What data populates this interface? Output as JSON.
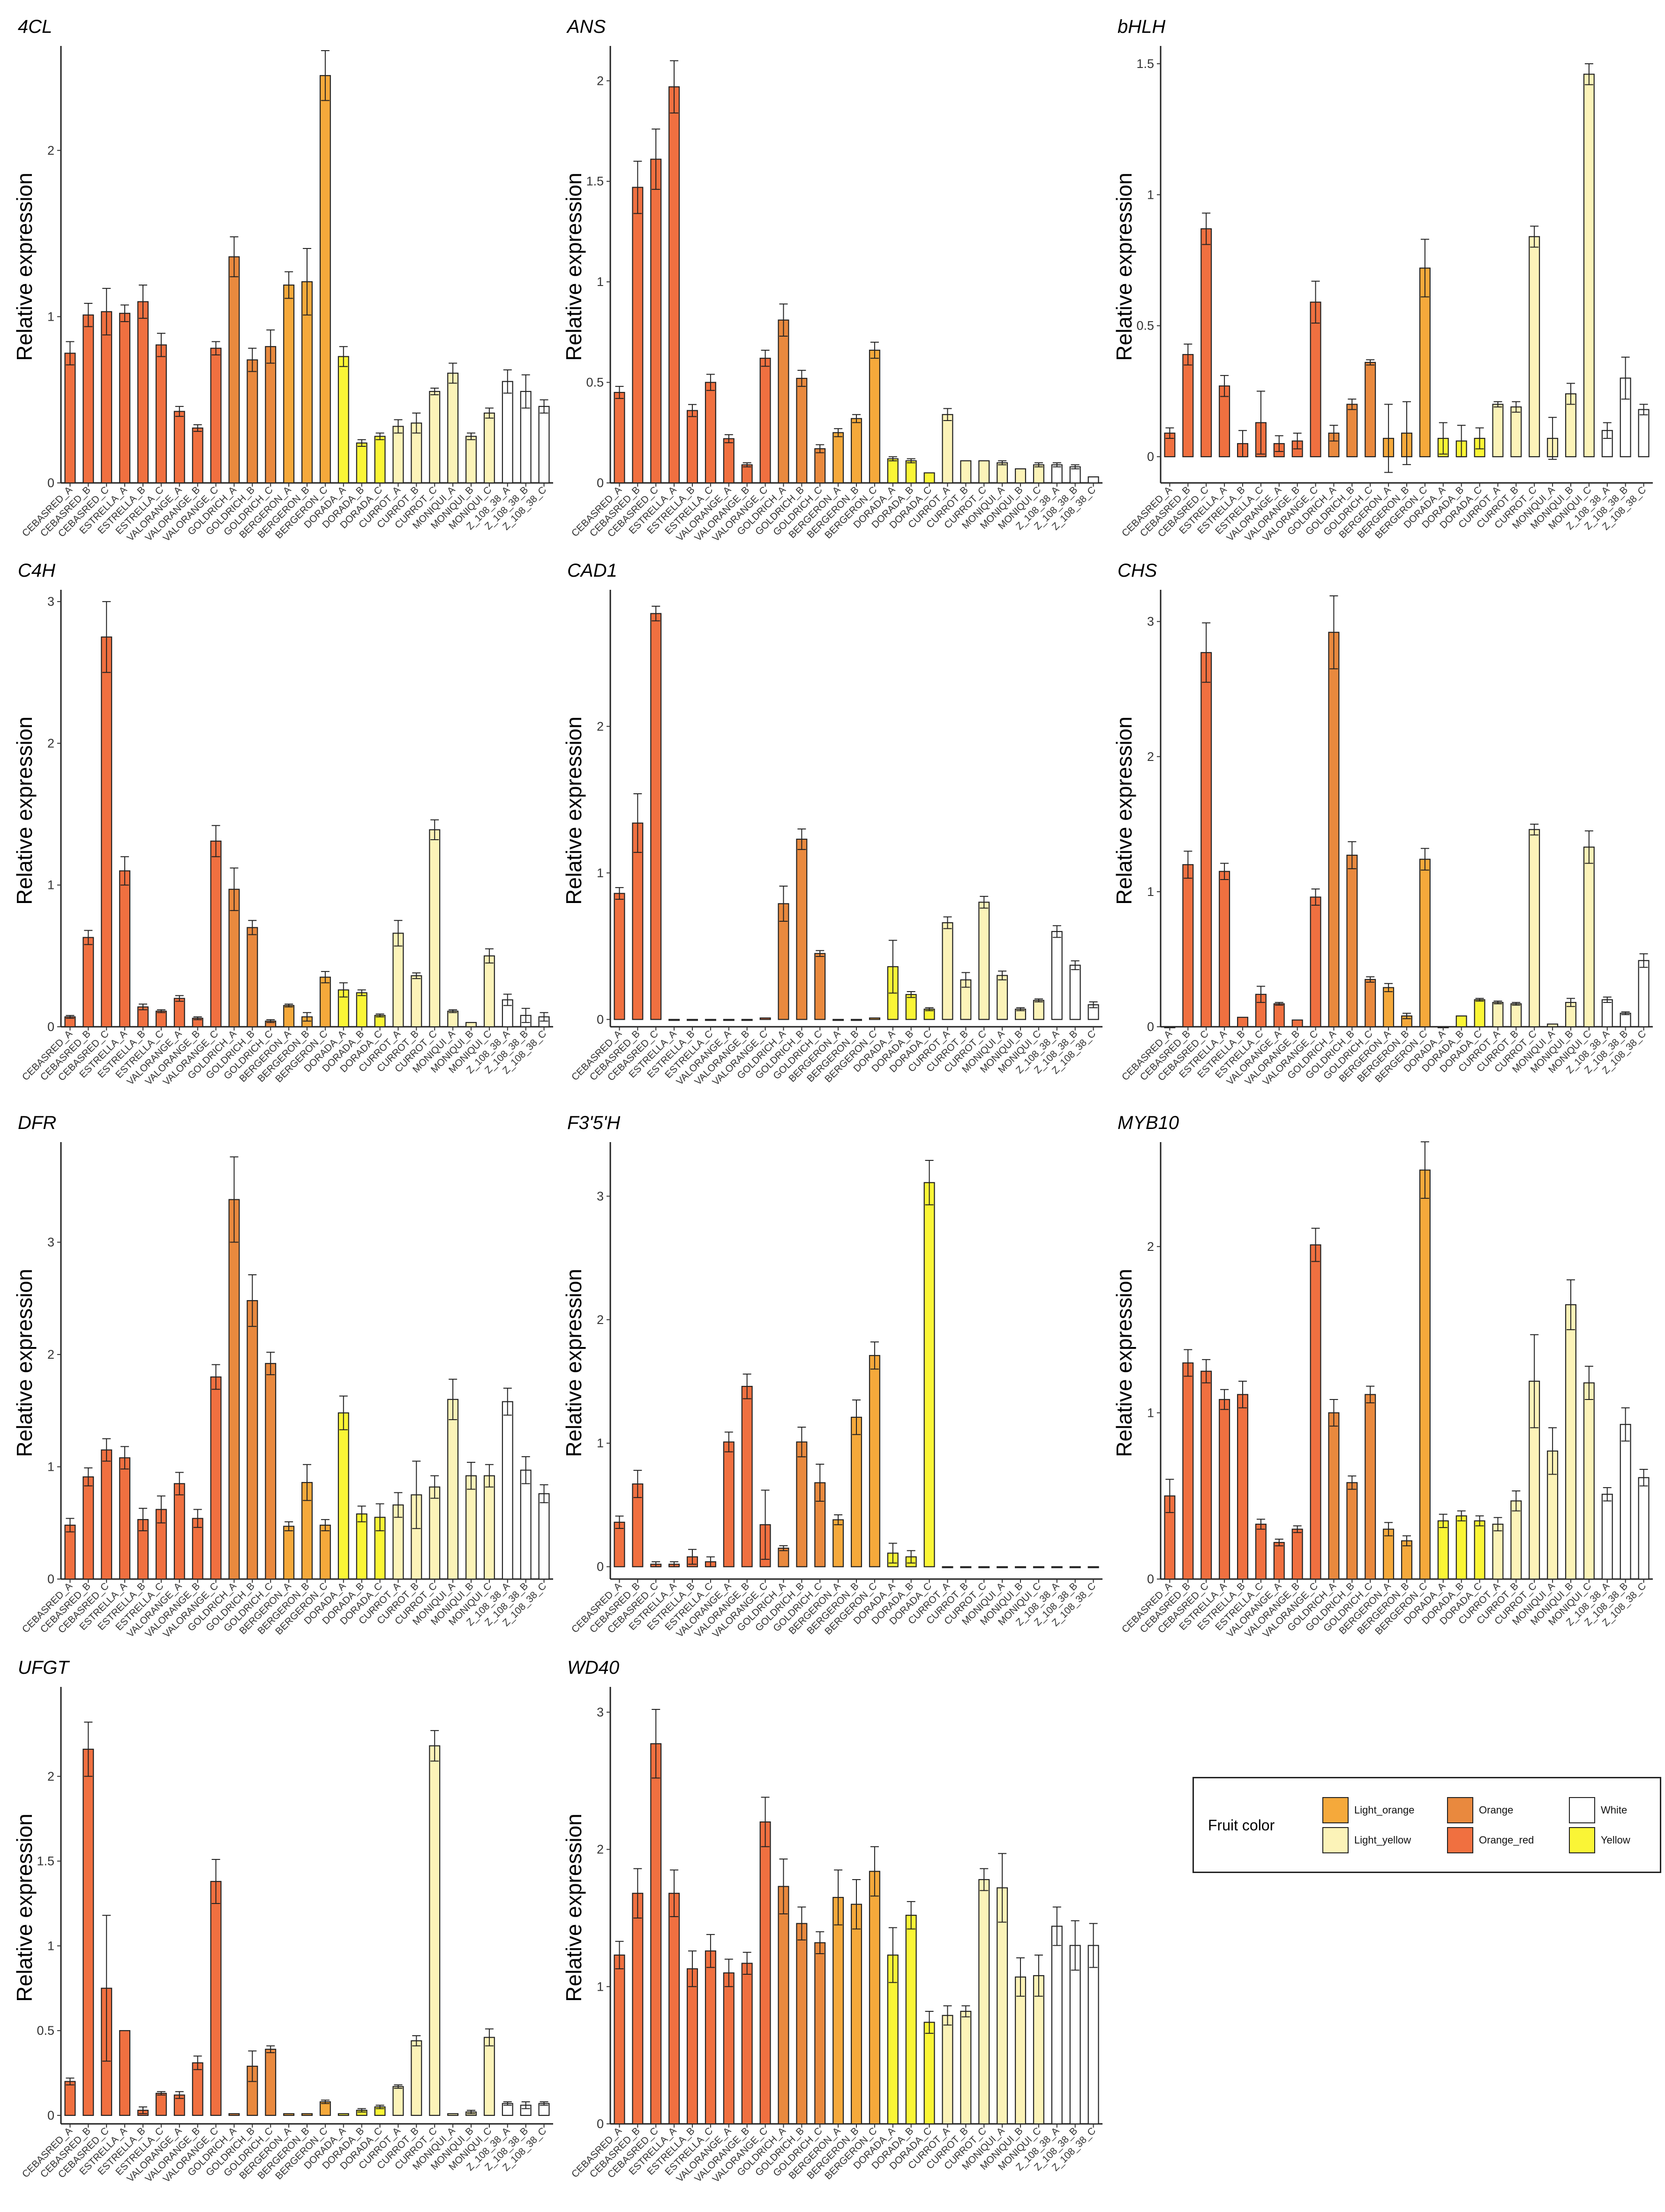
{
  "legend": {
    "title": "Fruit color",
    "entries": [
      {
        "name": "Light_orange",
        "color": "#F5A93B"
      },
      {
        "name": "Light_yellow",
        "color": "#FCF3B8"
      },
      {
        "name": "Orange",
        "color": "#E9893E"
      },
      {
        "name": "Orange_red",
        "color": "#F07040"
      },
      {
        "name": "White",
        "color": "#FFFFFF"
      },
      {
        "name": "Yellow",
        "color": "#FAF536"
      }
    ]
  },
  "chart_data": [
    {
      "type": "bar",
      "title": "4CL",
      "ylabel": "Relative expression",
      "ylim": [
        0,
        2.6
      ],
      "yticks": [
        0,
        1,
        2
      ],
      "categories": [
        "CEBASRED_A",
        "CEBASRED_B",
        "CEBASRED_C",
        "ESTRELLA_A",
        "ESTRELLA_B",
        "ESTRELLA_C",
        "VALORANGE_A",
        "VALORANGE_B",
        "VALORANGE_C",
        "GOLDRICH_A",
        "GOLDRICH_B",
        "GOLDRICH_C",
        "BERGERON_A",
        "BERGERON_B",
        "BERGERON_C",
        "DORADA_A",
        "DORADA_B",
        "DORADA_C",
        "CURROT_A",
        "CURROT_B",
        "CURROT_C",
        "MONIQUI_A",
        "MONIQUI_B",
        "MONIQUI_C",
        "Z_108_38_A",
        "Z_108_38_B",
        "Z_108_38_C"
      ],
      "values": [
        0.78,
        1.01,
        1.03,
        1.02,
        1.09,
        0.83,
        0.43,
        0.33,
        0.81,
        1.36,
        0.74,
        0.82,
        1.19,
        1.21,
        2.45,
        0.76,
        0.24,
        0.28,
        0.34,
        0.36,
        0.55,
        0.66,
        0.28,
        0.42,
        0.61,
        0.55,
        0.46
      ],
      "errors": [
        0.07,
        0.07,
        0.14,
        0.05,
        0.1,
        0.07,
        0.03,
        0.02,
        0.04,
        0.12,
        0.07,
        0.1,
        0.08,
        0.2,
        0.15,
        0.06,
        0.02,
        0.02,
        0.04,
        0.06,
        0.02,
        0.06,
        0.02,
        0.03,
        0.07,
        0.1,
        0.04
      ]
    },
    {
      "type": "bar",
      "title": "ANS",
      "ylabel": "Relative expression",
      "ylim": [
        0,
        2.15
      ],
      "yticks": [
        0,
        0.5,
        1,
        1.5,
        2
      ],
      "categories": [
        "CEBASRED_A",
        "CEBASRED_B",
        "CEBASRED_C",
        "ESTRELLA_A",
        "ESTRELLA_B",
        "ESTRELLA_C",
        "VALORANGE_A",
        "VALORANGE_B",
        "VALORANGE_C",
        "GOLDRICH_A",
        "GOLDRICH_B",
        "GOLDRICH_C",
        "BERGERON_A",
        "BERGERON_B",
        "BERGERON_C",
        "DORADA_A",
        "DORADA_B",
        "DORADA_C",
        "CURROT_A",
        "CURROT_B",
        "CURROT_C",
        "MONIQUI_A",
        "MONIQUI_B",
        "MONIQUI_C",
        "Z_108_38_A",
        "Z_108_38_B",
        "Z_108_38_C"
      ],
      "values": [
        0.45,
        1.47,
        1.61,
        1.97,
        0.36,
        0.5,
        0.22,
        0.09,
        0.62,
        0.81,
        0.52,
        0.17,
        0.25,
        0.32,
        0.66,
        0.12,
        0.11,
        0.05,
        0.34,
        0.11,
        0.11,
        0.1,
        0.07,
        0.09,
        0.09,
        0.08,
        0.03
      ],
      "errors": [
        0.03,
        0.13,
        0.15,
        0.13,
        0.03,
        0.04,
        0.02,
        0.01,
        0.04,
        0.08,
        0.04,
        0.02,
        0.02,
        0.02,
        0.04,
        0.01,
        0.01,
        0.0,
        0.03,
        0.0,
        0.0,
        0.01,
        0.0,
        0.01,
        0.01,
        0.01,
        0.0
      ]
    },
    {
      "type": "bar",
      "title": "bHLH",
      "ylabel": "Relative expression",
      "ylim": [
        -0.1,
        1.55
      ],
      "yticks": [
        0,
        0.5,
        1,
        1.5
      ],
      "categories": [
        "CEBASRED_A",
        "CEBASRED_B",
        "CEBASRED_C",
        "ESTRELLA_A",
        "ESTRELLA_B",
        "ESTRELLA_C",
        "VALORANGE_A",
        "VALORANGE_B",
        "VALORANGE_C",
        "GOLDRICH_A",
        "GOLDRICH_B",
        "GOLDRICH_C",
        "BERGERON_A",
        "BERGERON_B",
        "BERGERON_C",
        "DORADA_A",
        "DORADA_B",
        "DORADA_C",
        "CURROT_A",
        "CURROT_B",
        "CURROT_C",
        "MONIQUI_A",
        "MONIQUI_B",
        "MONIQUI_C",
        "Z_108_38_A",
        "Z_108_38_B",
        "Z_108_38_C"
      ],
      "values": [
        0.09,
        0.39,
        0.87,
        0.27,
        0.05,
        0.13,
        0.05,
        0.06,
        0.59,
        0.09,
        0.2,
        0.36,
        0.07,
        0.09,
        0.72,
        0.07,
        0.06,
        0.07,
        0.2,
        0.19,
        0.84,
        0.07,
        0.24,
        1.46,
        0.1,
        0.3,
        0.18
      ],
      "errors": [
        0.02,
        0.04,
        0.06,
        0.04,
        0.05,
        0.12,
        0.03,
        0.03,
        0.08,
        0.03,
        0.02,
        0.01,
        0.13,
        0.12,
        0.11,
        0.06,
        0.06,
        0.04,
        0.01,
        0.02,
        0.04,
        0.08,
        0.04,
        0.04,
        0.03,
        0.08,
        0.02
      ]
    },
    {
      "type": "bar",
      "title": "C4H",
      "ylabel": "Relative expression",
      "ylim": [
        0,
        3.05
      ],
      "yticks": [
        0,
        1,
        2,
        3
      ],
      "categories": [
        "CEBASRED_A",
        "CEBASRED_B",
        "CEBASRED_C",
        "ESTRELLA_A",
        "ESTRELLA_B",
        "ESTRELLA_C",
        "VALORANGE_A",
        "VALORANGE_B",
        "VALORANGE_C",
        "GOLDRICH_A",
        "GOLDRICH_B",
        "GOLDRICH_C",
        "BERGERON_A",
        "BERGERON_B",
        "BERGERON_C",
        "DORADA_A",
        "DORADA_B",
        "DORADA_C",
        "CURROT_A",
        "CURROT_B",
        "CURROT_C",
        "MONIQUI_A",
        "MONIQUI_B",
        "MONIQUI_C",
        "Z_108_38_A",
        "Z_108_38_B",
        "Z_108_38_C"
      ],
      "values": [
        0.07,
        0.63,
        2.75,
        1.1,
        0.14,
        0.11,
        0.2,
        0.06,
        1.31,
        0.97,
        0.7,
        0.04,
        0.15,
        0.07,
        0.35,
        0.26,
        0.24,
        0.08,
        0.66,
        0.36,
        1.39,
        0.11,
        0.03,
        0.5,
        0.19,
        0.08,
        0.07
      ],
      "errors": [
        0.01,
        0.05,
        0.25,
        0.1,
        0.02,
        0.01,
        0.02,
        0.01,
        0.11,
        0.15,
        0.05,
        0.01,
        0.01,
        0.03,
        0.04,
        0.05,
        0.02,
        0.01,
        0.09,
        0.02,
        0.07,
        0.01,
        0.0,
        0.05,
        0.04,
        0.05,
        0.03
      ]
    },
    {
      "type": "bar",
      "title": "CAD1",
      "ylabel": "Relative expression",
      "ylim": [
        -0.05,
        2.9
      ],
      "yticks": [
        0,
        1,
        2
      ],
      "categories": [
        "CEBASRED_A",
        "CEBASRED_B",
        "CEBASRED_C",
        "ESTRELLA_A",
        "ESTRELLA_B",
        "ESTRELLA_C",
        "VALORANGE_A",
        "VALORANGE_B",
        "VALORANGE_C",
        "GOLDRICH_A",
        "GOLDRICH_B",
        "GOLDRICH_C",
        "BERGERON_A",
        "BERGERON_B",
        "BERGERON_C",
        "DORADA_A",
        "DORADA_B",
        "DORADA_C",
        "CURROT_A",
        "CURROT_B",
        "CURROT_C",
        "MONIQUI_A",
        "MONIQUI_B",
        "MONIQUI_C",
        "Z_108_38_A",
        "Z_108_38_B",
        "Z_108_38_C"
      ],
      "values": [
        0.86,
        1.34,
        2.77,
        0.0,
        0.0,
        0.0,
        0.0,
        0.0,
        0.01,
        0.79,
        1.23,
        0.45,
        0.0,
        0.0,
        0.01,
        0.36,
        0.17,
        0.07,
        0.66,
        0.27,
        0.8,
        0.3,
        0.07,
        0.13,
        0.6,
        0.37,
        0.1
      ],
      "errors": [
        0.04,
        0.2,
        0.05,
        0.0,
        0.0,
        0.0,
        0.0,
        0.0,
        0.0,
        0.12,
        0.07,
        0.02,
        0.0,
        0.0,
        0.0,
        0.18,
        0.02,
        0.01,
        0.04,
        0.05,
        0.04,
        0.03,
        0.01,
        0.01,
        0.04,
        0.03,
        0.02
      ]
    },
    {
      "type": "bar",
      "title": "CHS",
      "ylabel": "Relative expression",
      "ylim": [
        0,
        3.2
      ],
      "yticks": [
        0,
        1,
        2,
        3
      ],
      "categories": [
        "CEBASRED_A",
        "CEBASRED_B",
        "CEBASRED_C",
        "ESTRELLA_A",
        "ESTRELLA_B",
        "ESTRELLA_C",
        "VALORANGE_A",
        "VALORANGE_B",
        "VALORANGE_C",
        "GOLDRICH_A",
        "GOLDRICH_B",
        "GOLDRICH_C",
        "BERGERON_A",
        "BERGERON_B",
        "BERGERON_C",
        "DORADA_A",
        "DORADA_B",
        "DORADA_C",
        "CURROT_A",
        "CURROT_B",
        "CURROT_C",
        "MONIQUI_A",
        "MONIQUI_B",
        "MONIQUI_C",
        "Z_108_38_A",
        "Z_108_38_B",
        "Z_108_38_C"
      ],
      "values": [
        0.0,
        1.2,
        2.77,
        1.15,
        0.07,
        0.24,
        0.17,
        0.05,
        0.96,
        2.92,
        1.27,
        0.35,
        0.29,
        0.08,
        1.24,
        0.0,
        0.08,
        0.2,
        0.18,
        0.17,
        1.46,
        0.02,
        0.18,
        1.33,
        0.2,
        0.1,
        0.49
      ],
      "errors": [
        0.0,
        0.1,
        0.22,
        0.06,
        0.0,
        0.06,
        0.01,
        0.0,
        0.06,
        0.27,
        0.1,
        0.02,
        0.03,
        0.02,
        0.08,
        0.0,
        0.0,
        0.01,
        0.01,
        0.01,
        0.04,
        0.0,
        0.03,
        0.12,
        0.02,
        0.01,
        0.05
      ]
    },
    {
      "type": "bar",
      "title": "DFR",
      "ylabel": "Relative expression",
      "ylim": [
        0,
        3.85
      ],
      "yticks": [
        0,
        1,
        2,
        3
      ],
      "categories": [
        "CEBASRED_A",
        "CEBASRED_B",
        "CEBASRED_C",
        "ESTRELLA_A",
        "ESTRELLA_B",
        "ESTRELLA_C",
        "VALORANGE_A",
        "VALORANGE_B",
        "VALORANGE_C",
        "GOLDRICH_A",
        "GOLDRICH_B",
        "GOLDRICH_C",
        "BERGERON_A",
        "BERGERON_B",
        "BERGERON_C",
        "DORADA_A",
        "DORADA_B",
        "DORADA_C",
        "CURROT_A",
        "CURROT_B",
        "CURROT_C",
        "MONIQUI_A",
        "MONIQUI_B",
        "MONIQUI_C",
        "Z_108_38_A",
        "Z_108_38_B",
        "Z_108_38_C"
      ],
      "values": [
        0.48,
        0.91,
        1.15,
        1.08,
        0.53,
        0.62,
        0.85,
        0.54,
        1.8,
        3.38,
        2.48,
        1.92,
        0.47,
        0.86,
        0.48,
        1.48,
        0.58,
        0.55,
        0.66,
        0.75,
        0.82,
        1.6,
        0.92,
        0.92,
        1.58,
        0.97,
        0.76
      ],
      "errors": [
        0.06,
        0.08,
        0.1,
        0.1,
        0.1,
        0.12,
        0.1,
        0.08,
        0.11,
        0.38,
        0.23,
        0.1,
        0.04,
        0.16,
        0.05,
        0.15,
        0.07,
        0.12,
        0.11,
        0.3,
        0.1,
        0.18,
        0.12,
        0.1,
        0.12,
        0.12,
        0.08
      ]
    },
    {
      "type": "bar",
      "title": "F3'5'H",
      "ylabel": "Relative expression",
      "ylim": [
        -0.1,
        3.4
      ],
      "yticks": [
        0,
        1,
        2,
        3
      ],
      "categories": [
        "CEBASRED_A",
        "CEBASRED_B",
        "CEBASRED_C",
        "ESTRELLA_A",
        "ESTRELLA_B",
        "ESTRELLA_C",
        "VALORANGE_A",
        "VALORANGE_B",
        "VALORANGE_C",
        "GOLDRICH_A",
        "GOLDRICH_B",
        "GOLDRICH_C",
        "BERGERON_A",
        "BERGERON_B",
        "BERGERON_C",
        "DORADA_A",
        "DORADA_B",
        "DORADA_C",
        "CURROT_A",
        "CURROT_B",
        "CURROT_C",
        "MONIQUI_A",
        "MONIQUI_B",
        "MONIQUI_C",
        "Z_108_38_A",
        "Z_108_38_B",
        "Z_108_38_C"
      ],
      "values": [
        0.36,
        0.67,
        0.02,
        0.02,
        0.08,
        0.04,
        1.01,
        1.46,
        0.34,
        0.15,
        1.01,
        0.68,
        0.38,
        1.21,
        1.71,
        0.11,
        0.08,
        3.11,
        0.0,
        0.0,
        0.0,
        0.0,
        0.0,
        0.0,
        0.0,
        0.0,
        0.0
      ],
      "errors": [
        0.05,
        0.11,
        0.02,
        0.02,
        0.06,
        0.04,
        0.08,
        0.1,
        0.28,
        0.02,
        0.12,
        0.15,
        0.04,
        0.14,
        0.11,
        0.08,
        0.05,
        0.18,
        0.0,
        0.0,
        0.0,
        0.0,
        0.0,
        0.0,
        0.0,
        0.0,
        0.0
      ]
    },
    {
      "type": "bar",
      "title": "MYB10",
      "ylabel": "Relative expression",
      "ylim": [
        0,
        2.6
      ],
      "yticks": [
        0,
        1,
        2
      ],
      "categories": [
        "CEBASRED_A",
        "CEBASRED_B",
        "CEBASRED_C",
        "ESTRELLA_A",
        "ESTRELLA_B",
        "ESTRELLA_C",
        "VALORANGE_A",
        "VALORANGE_B",
        "VALORANGE_C",
        "GOLDRICH_A",
        "GOLDRICH_B",
        "GOLDRICH_C",
        "BERGERON_A",
        "BERGERON_B",
        "BERGERON_C",
        "DORADA_A",
        "DORADA_B",
        "DORADA_C",
        "CURROT_A",
        "CURROT_B",
        "CURROT_C",
        "MONIQUI_A",
        "MONIQUI_B",
        "MONIQUI_C",
        "Z_108_38_A",
        "Z_108_38_B",
        "Z_108_38_C"
      ],
      "values": [
        0.5,
        1.3,
        1.25,
        1.08,
        1.11,
        0.33,
        0.22,
        0.3,
        2.01,
        1.0,
        0.58,
        1.11,
        0.3,
        0.23,
        2.46,
        0.35,
        0.38,
        0.35,
        0.33,
        0.47,
        1.19,
        0.77,
        1.65,
        1.18,
        0.51,
        0.93,
        0.61
      ],
      "errors": [
        0.1,
        0.08,
        0.07,
        0.06,
        0.08,
        0.03,
        0.02,
        0.02,
        0.1,
        0.08,
        0.04,
        0.05,
        0.04,
        0.03,
        0.17,
        0.04,
        0.03,
        0.03,
        0.04,
        0.06,
        0.28,
        0.14,
        0.15,
        0.1,
        0.04,
        0.1,
        0.05
      ]
    },
    {
      "type": "bar",
      "title": "UFGT",
      "ylabel": "Relative expression",
      "ylim": [
        -0.05,
        2.5
      ],
      "yticks": [
        0,
        0.5,
        1,
        1.5,
        2
      ],
      "categories": [
        "CEBASRED_A",
        "CEBASRED_B",
        "CEBASRED_C",
        "ESTRELLA_A",
        "ESTRELLA_B",
        "ESTRELLA_C",
        "VALORANGE_A",
        "VALORANGE_B",
        "VALORANGE_C",
        "GOLDRICH_A",
        "GOLDRICH_B",
        "GOLDRICH_C",
        "BERGERON_A",
        "BERGERON_B",
        "BERGERON_C",
        "DORADA_A",
        "DORADA_B",
        "DORADA_C",
        "CURROT_A",
        "CURROT_B",
        "CURROT_C",
        "MONIQUI_A",
        "MONIQUI_B",
        "MONIQUI_C",
        "Z_108_38_A",
        "Z_108_38_B",
        "Z_108_38_C"
      ],
      "values": [
        0.2,
        2.16,
        0.75,
        0.5,
        0.03,
        0.13,
        0.12,
        0.31,
        1.38,
        0.01,
        0.29,
        0.39,
        0.01,
        0.01,
        0.08,
        0.01,
        0.03,
        0.05,
        0.17,
        0.44,
        2.18,
        0.01,
        0.02,
        0.46,
        0.07,
        0.06,
        0.07
      ],
      "errors": [
        0.02,
        0.16,
        0.43,
        0.0,
        0.02,
        0.01,
        0.02,
        0.04,
        0.13,
        0.0,
        0.09,
        0.02,
        0.0,
        0.0,
        0.01,
        0.0,
        0.01,
        0.01,
        0.01,
        0.03,
        0.09,
        0.0,
        0.01,
        0.05,
        0.01,
        0.02,
        0.01
      ]
    },
    {
      "type": "bar",
      "title": "WD40",
      "ylabel": "Relative expression",
      "ylim": [
        0,
        3.15
      ],
      "yticks": [
        0,
        1,
        2,
        3
      ],
      "categories": [
        "CEBASRED_A",
        "CEBASRED_B",
        "CEBASRED_C",
        "ESTRELLA_A",
        "ESTRELLA_B",
        "ESTRELLA_C",
        "VALORANGE_A",
        "VALORANGE_B",
        "VALORANGE_C",
        "GOLDRICH_A",
        "GOLDRICH_B",
        "GOLDRICH_C",
        "BERGERON_A",
        "BERGERON_B",
        "BERGERON_C",
        "DORADA_A",
        "DORADA_B",
        "DORADA_C",
        "CURROT_A",
        "CURROT_B",
        "CURROT_C",
        "MONIQUI_A",
        "MONIQUI_B",
        "MONIQUI_C",
        "Z_108_38_A",
        "Z_108_38_B",
        "Z_108_38_C"
      ],
      "values": [
        1.23,
        1.68,
        2.77,
        1.68,
        1.13,
        1.26,
        1.1,
        1.17,
        2.2,
        1.73,
        1.46,
        1.32,
        1.65,
        1.6,
        1.84,
        1.23,
        1.52,
        0.74,
        0.79,
        0.82,
        1.78,
        1.72,
        1.07,
        1.08,
        1.44,
        1.3,
        1.3
      ],
      "errors": [
        0.1,
        0.18,
        0.25,
        0.17,
        0.13,
        0.12,
        0.1,
        0.08,
        0.18,
        0.2,
        0.12,
        0.08,
        0.2,
        0.18,
        0.18,
        0.2,
        0.1,
        0.08,
        0.07,
        0.04,
        0.08,
        0.25,
        0.14,
        0.15,
        0.14,
        0.18,
        0.16
      ]
    }
  ],
  "bar_colors": [
    "#F07040",
    "#F07040",
    "#F07040",
    "#F07040",
    "#F07040",
    "#F07040",
    "#F07040",
    "#F07040",
    "#F07040",
    "#E9893E",
    "#E9893E",
    "#E9893E",
    "#F5A93B",
    "#F5A93B",
    "#F5A93B",
    "#FAF536",
    "#FAF536",
    "#FAF536",
    "#FCF3B8",
    "#FCF3B8",
    "#FCF3B8",
    "#FCF3B8",
    "#FCF3B8",
    "#FCF3B8",
    "#FFFFFF",
    "#FFFFFF",
    "#FFFFFF"
  ]
}
